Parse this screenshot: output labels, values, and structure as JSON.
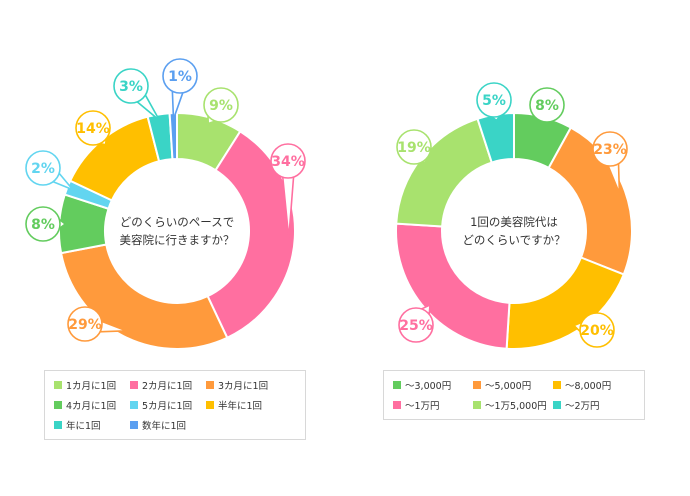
{
  "chart_data": [
    {
      "type": "pie",
      "title": "どのくらいのペースで美容院に行きますか？",
      "title_lines": [
        "どのくらいのペースで",
        "美容院に行きますか？"
      ],
      "categories": [
        "1カ月に1回",
        "2カ月に1回",
        "3カ月に1回",
        "4カ月に1回",
        "5カ月に1回",
        "半年に1回",
        "年に1回",
        "数年に1回"
      ],
      "values": [
        9,
        34,
        29,
        8,
        2,
        14,
        3,
        1
      ],
      "value_labels": [
        "9%",
        "34%",
        "29%",
        "8%",
        "2%",
        "14%",
        "3%",
        "1%"
      ],
      "colors": [
        "#a8e26e",
        "#ff6fa0",
        "#ff9a3c",
        "#63cc5e",
        "#62d5f0",
        "#ffbf00",
        "#3ad4c6",
        "#5b9ff0"
      ],
      "legend_position": "bottom"
    },
    {
      "type": "pie",
      "title": "1回の美容院代はどのくらいですか？",
      "title_lines": [
        "1回の美容院代は",
        "どのくらいですか？"
      ],
      "categories": [
        "〜3,000円",
        "〜5,000円",
        "〜8,000円",
        "〜1万円",
        "〜1万5,000円",
        "〜2万円"
      ],
      "values": [
        8,
        23,
        20,
        25,
        19,
        5
      ],
      "value_labels": [
        "8%",
        "23%",
        "20%",
        "25%",
        "19%",
        "5%"
      ],
      "colors": [
        "#63cc5e",
        "#ff9a3c",
        "#ffbf00",
        "#ff6fa0",
        "#a8e26e",
        "#3ad4c6"
      ],
      "legend_position": "bottom"
    }
  ]
}
